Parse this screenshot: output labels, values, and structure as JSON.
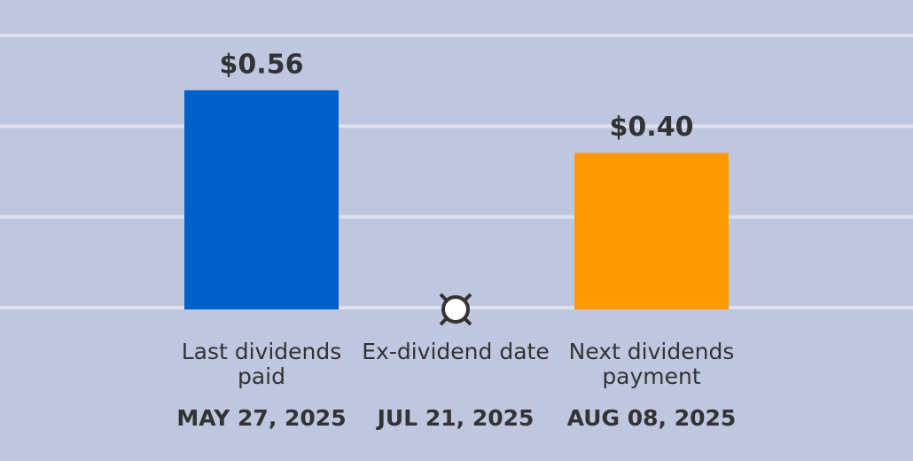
{
  "chart_data": {
    "type": "bar",
    "categories": [
      "Last dividends paid",
      "Ex-dividend date",
      "Next dividends payment"
    ],
    "dates": [
      "MAY 27, 2025",
      "JUL 21, 2025",
      "AUG 08, 2025"
    ],
    "values": [
      0.56,
      null,
      0.4
    ],
    "value_labels": [
      "$0.56",
      null,
      "$0.40"
    ],
    "colors": [
      "#005fc8",
      null,
      "#ff9900"
    ],
    "ylim": [
      0,
      0.7
    ],
    "grid": true
  }
}
